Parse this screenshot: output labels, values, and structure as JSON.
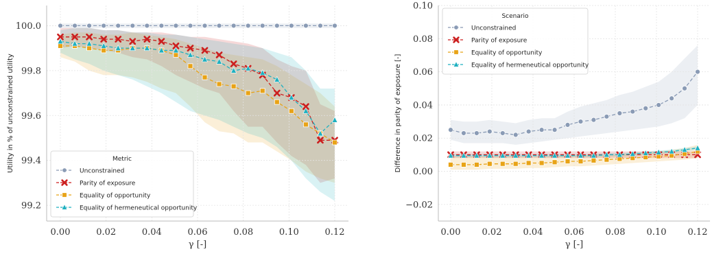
{
  "colors": {
    "unconstrained": "#8a9bb5",
    "parity": "#cc1f1f",
    "equality_opportunity": "#e8a317",
    "hermeneutical": "#1fb0c0"
  },
  "chart_data": [
    {
      "type": "line",
      "xlabel": "γ [-]",
      "ylabel": "Utility in % of unconstrained utility",
      "xlim": [
        -0.006,
        0.126
      ],
      "ylim": [
        99.13,
        100.09
      ],
      "xticks": [
        0.0,
        0.02,
        0.04,
        0.06,
        0.08,
        0.1,
        0.12
      ],
      "xtick_labels": [
        "0.00",
        "0.02",
        "0.04",
        "0.06",
        "0.08",
        "0.10",
        "0.12"
      ],
      "yticks": [
        99.2,
        99.4,
        99.6,
        99.8,
        100.0
      ],
      "ytick_labels": [
        "99.2",
        "99.4",
        "99.6",
        "99.8",
        "100.0"
      ],
      "grid": true,
      "legend_title": "Metric",
      "legend_position": "lower-left",
      "x": [
        0.0,
        0.00632,
        0.01263,
        0.01895,
        0.02526,
        0.03158,
        0.03789,
        0.04421,
        0.05053,
        0.05684,
        0.06316,
        0.06947,
        0.07579,
        0.08211,
        0.08842,
        0.09474,
        0.10105,
        0.10737,
        0.11368,
        0.12
      ],
      "series": [
        {
          "name": "Unconstrained",
          "key": "unconstrained",
          "marker": "circle",
          "values": [
            100.0,
            100.0,
            100.0,
            100.0,
            100.0,
            100.0,
            100.0,
            100.0,
            100.0,
            100.0,
            100.0,
            100.0,
            100.0,
            100.0,
            100.0,
            100.0,
            100.0,
            100.0,
            100.0,
            100.0
          ],
          "lower": [
            99.99,
            99.99,
            99.99,
            99.99,
            99.99,
            99.99,
            99.99,
            99.99,
            99.99,
            99.99,
            99.99,
            99.99,
            99.99,
            99.99,
            99.99,
            99.99,
            99.99,
            99.99,
            99.99,
            99.99
          ],
          "upper": [
            100.01,
            100.01,
            100.01,
            100.01,
            100.01,
            100.01,
            100.01,
            100.01,
            100.01,
            100.01,
            100.01,
            100.01,
            100.01,
            100.01,
            100.01,
            100.01,
            100.01,
            100.01,
            100.01,
            100.01
          ]
        },
        {
          "name": "Parity of exposure",
          "key": "parity",
          "marker": "x",
          "values": [
            99.95,
            99.95,
            99.95,
            99.94,
            99.94,
            99.93,
            99.94,
            99.93,
            99.91,
            99.9,
            99.89,
            99.87,
            99.83,
            99.81,
            99.78,
            99.7,
            99.68,
            99.64,
            99.49,
            99.49
          ],
          "lower": [
            99.9,
            99.91,
            99.9,
            99.89,
            99.88,
            99.86,
            99.85,
            99.82,
            99.78,
            99.75,
            99.72,
            99.7,
            99.62,
            99.55,
            99.55,
            99.48,
            99.42,
            99.38,
            99.3,
            99.32
          ],
          "upper": [
            99.99,
            99.99,
            99.99,
            99.98,
            99.98,
            99.97,
            99.97,
            99.97,
            99.96,
            99.95,
            99.95,
            99.94,
            99.93,
            99.92,
            99.9,
            99.85,
            99.82,
            99.8,
            99.65,
            99.62
          ]
        },
        {
          "name": "Equality of opportunity",
          "key": "equality_opportunity",
          "marker": "square",
          "values": [
            99.91,
            99.91,
            99.9,
            99.89,
            99.89,
            99.9,
            99.9,
            99.89,
            99.87,
            99.82,
            99.77,
            99.74,
            99.73,
            99.7,
            99.71,
            99.66,
            99.62,
            99.56,
            99.52,
            99.48
          ],
          "lower": [
            99.86,
            99.84,
            99.8,
            99.78,
            99.78,
            99.77,
            99.75,
            99.72,
            99.7,
            99.64,
            99.57,
            99.53,
            99.52,
            99.48,
            99.48,
            99.44,
            99.4,
            99.35,
            99.32,
            99.3
          ],
          "upper": [
            99.96,
            99.97,
            99.97,
            99.96,
            99.96,
            99.97,
            99.96,
            99.95,
            99.94,
            99.92,
            99.9,
            99.88,
            99.87,
            99.86,
            99.85,
            99.82,
            99.78,
            99.74,
            99.7,
            99.64
          ]
        },
        {
          "name": "Equality of hermeneutical opportunity",
          "key": "hermeneutical",
          "marker": "triangle",
          "values": [
            99.93,
            99.92,
            99.92,
            99.91,
            99.9,
            99.9,
            99.9,
            99.89,
            99.89,
            99.87,
            99.85,
            99.84,
            99.8,
            99.81,
            99.79,
            99.76,
            99.68,
            99.62,
            99.52,
            99.58
          ],
          "lower": [
            99.88,
            99.85,
            99.83,
            99.8,
            99.78,
            99.76,
            99.73,
            99.7,
            99.66,
            99.62,
            99.6,
            99.58,
            99.55,
            99.52,
            99.5,
            99.46,
            99.4,
            99.32,
            99.26,
            99.22
          ],
          "upper": [
            99.98,
            99.99,
            99.99,
            99.98,
            99.98,
            99.97,
            99.97,
            99.96,
            99.96,
            99.95,
            99.94,
            99.93,
            99.92,
            99.91,
            99.9,
            99.88,
            99.86,
            99.8,
            99.72,
            99.72
          ]
        }
      ]
    },
    {
      "type": "line",
      "xlabel": "γ [-]",
      "ylabel": "Difference in parity of exposure [-]",
      "xlim": [
        -0.006,
        0.126
      ],
      "ylim": [
        -0.03,
        0.1
      ],
      "xticks": [
        0.0,
        0.02,
        0.04,
        0.06,
        0.08,
        0.1,
        0.12
      ],
      "xtick_labels": [
        "0.00",
        "0.02",
        "0.04",
        "0.06",
        "0.08",
        "0.10",
        "0.12"
      ],
      "yticks": [
        -0.02,
        0.0,
        0.02,
        0.04,
        0.06,
        0.08,
        0.1
      ],
      "ytick_labels": [
        "−0.02",
        "0.00",
        "0.02",
        "0.04",
        "0.06",
        "0.08",
        "0.10"
      ],
      "grid": true,
      "legend_title": "Scenario",
      "legend_position": "top-left",
      "x": [
        0.0,
        0.00632,
        0.01263,
        0.01895,
        0.02526,
        0.03158,
        0.03789,
        0.04421,
        0.05053,
        0.05684,
        0.06316,
        0.06947,
        0.07579,
        0.08211,
        0.08842,
        0.09474,
        0.10105,
        0.10737,
        0.11368,
        0.12
      ],
      "series": [
        {
          "name": "Unconstrained",
          "key": "unconstrained",
          "marker": "circle",
          "values": [
            0.025,
            0.023,
            0.023,
            0.024,
            0.023,
            0.022,
            0.024,
            0.025,
            0.025,
            0.028,
            0.03,
            0.031,
            0.033,
            0.035,
            0.036,
            0.038,
            0.04,
            0.044,
            0.05,
            0.06
          ],
          "lower": [
            0.019,
            0.017,
            0.017,
            0.017,
            0.017,
            0.016,
            0.017,
            0.018,
            0.019,
            0.02,
            0.021,
            0.022,
            0.023,
            0.024,
            0.025,
            0.026,
            0.027,
            0.029,
            0.032,
            0.04
          ],
          "upper": [
            0.031,
            0.03,
            0.03,
            0.031,
            0.03,
            0.029,
            0.031,
            0.032,
            0.032,
            0.036,
            0.039,
            0.041,
            0.043,
            0.046,
            0.048,
            0.051,
            0.054,
            0.06,
            0.068,
            0.076
          ]
        },
        {
          "name": "Parity of exposure",
          "key": "parity",
          "marker": "x",
          "values": [
            0.01,
            0.01,
            0.01,
            0.01,
            0.01,
            0.01,
            0.01,
            0.01,
            0.01,
            0.01,
            0.01,
            0.01,
            0.01,
            0.01,
            0.01,
            0.01,
            0.01,
            0.01,
            0.01,
            0.01
          ],
          "lower": [
            0.008,
            0.008,
            0.008,
            0.008,
            0.008,
            0.008,
            0.008,
            0.008,
            0.008,
            0.008,
            0.008,
            0.008,
            0.008,
            0.008,
            0.008,
            0.008,
            0.008,
            0.008,
            0.008,
            0.008
          ],
          "upper": [
            0.012,
            0.012,
            0.012,
            0.012,
            0.012,
            0.012,
            0.012,
            0.012,
            0.012,
            0.012,
            0.012,
            0.012,
            0.012,
            0.012,
            0.012,
            0.012,
            0.012,
            0.012,
            0.012,
            0.012
          ]
        },
        {
          "name": "Equality of opportunity",
          "key": "equality_opportunity",
          "marker": "square",
          "values": [
            0.004,
            0.004,
            0.004,
            0.0045,
            0.0045,
            0.0045,
            0.005,
            0.005,
            0.0055,
            0.006,
            0.006,
            0.0065,
            0.007,
            0.0075,
            0.008,
            0.0085,
            0.009,
            0.0095,
            0.0105,
            0.012
          ],
          "lower": [
            0.001,
            0.001,
            0.001,
            0.0015,
            0.0015,
            0.0015,
            0.002,
            0.002,
            0.0025,
            0.003,
            0.003,
            0.0035,
            0.004,
            0.0045,
            0.005,
            0.0055,
            0.006,
            0.0065,
            0.007,
            0.008
          ],
          "upper": [
            0.009,
            0.009,
            0.009,
            0.009,
            0.009,
            0.009,
            0.009,
            0.009,
            0.0095,
            0.0095,
            0.0095,
            0.01,
            0.01,
            0.0105,
            0.011,
            0.0115,
            0.012,
            0.013,
            0.014,
            0.016
          ]
        },
        {
          "name": "Equality of hermeneutical opportunity",
          "key": "hermeneutical",
          "marker": "triangle",
          "values": [
            0.0095,
            0.0095,
            0.0095,
            0.0095,
            0.0095,
            0.0095,
            0.0095,
            0.0095,
            0.0095,
            0.0095,
            0.0095,
            0.0095,
            0.01,
            0.01,
            0.0105,
            0.011,
            0.0115,
            0.012,
            0.013,
            0.014
          ],
          "lower": [
            0.0085,
            0.0085,
            0.0085,
            0.0085,
            0.0085,
            0.0085,
            0.0085,
            0.0085,
            0.0085,
            0.0085,
            0.0085,
            0.0085,
            0.009,
            0.009,
            0.0095,
            0.01,
            0.0105,
            0.011,
            0.012,
            0.013
          ],
          "upper": [
            0.0105,
            0.0105,
            0.0105,
            0.0105,
            0.0105,
            0.0105,
            0.0105,
            0.0105,
            0.0105,
            0.0105,
            0.0105,
            0.0105,
            0.011,
            0.011,
            0.0115,
            0.012,
            0.0125,
            0.013,
            0.014,
            0.015
          ]
        }
      ]
    }
  ]
}
